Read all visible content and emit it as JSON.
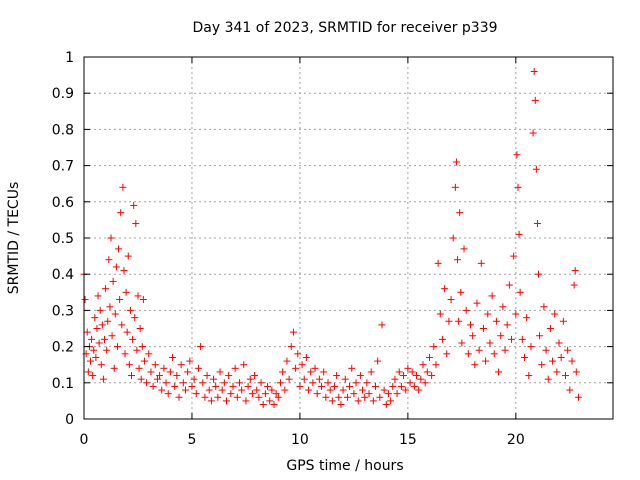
{
  "chart_data": {
    "type": "scatter",
    "title": "Day 341 of 2023, SRMTID for receiver p339",
    "xlabel": "GPS time / hours",
    "ylabel": "SRMTID / TECUs",
    "xlim": [
      0,
      24.5
    ],
    "ylim": [
      0,
      1
    ],
    "xticks": [
      0,
      5,
      10,
      15,
      20
    ],
    "yticks": [
      0,
      0.1,
      0.2,
      0.3,
      0.4,
      0.5,
      0.6,
      0.7,
      0.8,
      0.9,
      1
    ],
    "grid": true,
    "marker": "plus",
    "color": "#ff0000",
    "series": [
      {
        "name": "p339",
        "points": [
          [
            0.0,
            0.4
          ],
          [
            0.05,
            0.33
          ],
          [
            0.1,
            0.18
          ],
          [
            0.15,
            0.24
          ],
          [
            0.2,
            0.13
          ],
          [
            0.25,
            0.2
          ],
          [
            0.3,
            0.16
          ],
          [
            0.35,
            0.22
          ],
          [
            0.4,
            0.12
          ],
          [
            0.45,
            0.19
          ],
          [
            0.5,
            0.28
          ],
          [
            0.55,
            0.17
          ],
          [
            0.6,
            0.25
          ],
          [
            0.65,
            0.34
          ],
          [
            0.7,
            0.21
          ],
          [
            0.75,
            0.3
          ],
          [
            0.8,
            0.15
          ],
          [
            0.85,
            0.26
          ],
          [
            0.9,
            0.11
          ],
          [
            0.95,
            0.22
          ],
          [
            1.0,
            0.36
          ],
          [
            1.05,
            0.19
          ],
          [
            1.1,
            0.27
          ],
          [
            1.15,
            0.44
          ],
          [
            1.2,
            0.31
          ],
          [
            1.25,
            0.5
          ],
          [
            1.3,
            0.23
          ],
          [
            1.35,
            0.38
          ],
          [
            1.4,
            0.14
          ],
          [
            1.45,
            0.29
          ],
          [
            1.5,
            0.42
          ],
          [
            1.55,
            0.2
          ],
          [
            1.6,
            0.47
          ],
          [
            1.65,
            0.33
          ],
          [
            1.7,
            0.57
          ],
          [
            1.75,
            0.26
          ],
          [
            1.8,
            0.64
          ],
          [
            1.85,
            0.41
          ],
          [
            1.9,
            0.18
          ],
          [
            1.95,
            0.35
          ],
          [
            2.0,
            0.24
          ],
          [
            2.05,
            0.45
          ],
          [
            2.1,
            0.15
          ],
          [
            2.15,
            0.3
          ],
          [
            2.2,
            0.12
          ],
          [
            2.25,
            0.22
          ],
          [
            2.3,
            0.59
          ],
          [
            2.35,
            0.28
          ],
          [
            2.4,
            0.54
          ],
          [
            2.45,
            0.19
          ],
          [
            2.5,
            0.34
          ],
          [
            2.55,
            0.14
          ],
          [
            2.6,
            0.25
          ],
          [
            2.65,
            0.11
          ],
          [
            2.7,
            0.2
          ],
          [
            2.75,
            0.33
          ],
          [
            2.8,
            0.16
          ],
          [
            2.9,
            0.1
          ],
          [
            3.0,
            0.18
          ],
          [
            3.1,
            0.13
          ],
          [
            3.2,
            0.09
          ],
          [
            3.3,
            0.15
          ],
          [
            3.4,
            0.11
          ],
          [
            3.5,
            0.12
          ],
          [
            3.6,
            0.08
          ],
          [
            3.7,
            0.14
          ],
          [
            3.8,
            0.1
          ],
          [
            3.9,
            0.07
          ],
          [
            4.0,
            0.13
          ],
          [
            4.1,
            0.17
          ],
          [
            4.2,
            0.09
          ],
          [
            4.3,
            0.12
          ],
          [
            4.4,
            0.06
          ],
          [
            4.5,
            0.15
          ],
          [
            4.6,
            0.1
          ],
          [
            4.7,
            0.08
          ],
          [
            4.8,
            0.13
          ],
          [
            4.9,
            0.16
          ],
          [
            5.0,
            0.09
          ],
          [
            5.1,
            0.11
          ],
          [
            5.2,
            0.07
          ],
          [
            5.3,
            0.14
          ],
          [
            5.4,
            0.2
          ],
          [
            5.5,
            0.1
          ],
          [
            5.6,
            0.06
          ],
          [
            5.7,
            0.12
          ],
          [
            5.8,
            0.08
          ],
          [
            5.9,
            0.05
          ],
          [
            6.0,
            0.11
          ],
          [
            6.1,
            0.09
          ],
          [
            6.2,
            0.06
          ],
          [
            6.3,
            0.13
          ],
          [
            6.4,
            0.08
          ],
          [
            6.5,
            0.1
          ],
          [
            6.6,
            0.05
          ],
          [
            6.7,
            0.12
          ],
          [
            6.8,
            0.07
          ],
          [
            6.9,
            0.09
          ],
          [
            7.0,
            0.14
          ],
          [
            7.1,
            0.06
          ],
          [
            7.2,
            0.1
          ],
          [
            7.3,
            0.08
          ],
          [
            7.4,
            0.15
          ],
          [
            7.5,
            0.05
          ],
          [
            7.6,
            0.09
          ],
          [
            7.7,
            0.11
          ],
          [
            7.8,
            0.07
          ],
          [
            7.9,
            0.12
          ],
          [
            8.0,
            0.08
          ],
          [
            8.1,
            0.06
          ],
          [
            8.2,
            0.1
          ],
          [
            8.3,
            0.04
          ],
          [
            8.4,
            0.07
          ],
          [
            8.5,
            0.09
          ],
          [
            8.6,
            0.05
          ],
          [
            8.7,
            0.08
          ],
          [
            8.8,
            0.04
          ],
          [
            8.9,
            0.07
          ],
          [
            9.0,
            0.06
          ],
          [
            9.1,
            0.1
          ],
          [
            9.2,
            0.13
          ],
          [
            9.3,
            0.08
          ],
          [
            9.4,
            0.16
          ],
          [
            9.5,
            0.11
          ],
          [
            9.6,
            0.2
          ],
          [
            9.7,
            0.24
          ],
          [
            9.8,
            0.14
          ],
          [
            9.9,
            0.18
          ],
          [
            10.0,
            0.09
          ],
          [
            10.1,
            0.15
          ],
          [
            10.2,
            0.11
          ],
          [
            10.3,
            0.17
          ],
          [
            10.4,
            0.08
          ],
          [
            10.5,
            0.13
          ],
          [
            10.6,
            0.1
          ],
          [
            10.7,
            0.14
          ],
          [
            10.8,
            0.07
          ],
          [
            10.9,
            0.11
          ],
          [
            11.0,
            0.09
          ],
          [
            11.1,
            0.13
          ],
          [
            11.2,
            0.06
          ],
          [
            11.3,
            0.1
          ],
          [
            11.4,
            0.08
          ],
          [
            11.5,
            0.05
          ],
          [
            11.6,
            0.09
          ],
          [
            11.7,
            0.12
          ],
          [
            11.8,
            0.06
          ],
          [
            11.9,
            0.04
          ],
          [
            12.0,
            0.08
          ],
          [
            12.1,
            0.11
          ],
          [
            12.2,
            0.06
          ],
          [
            12.3,
            0.09
          ],
          [
            12.4,
            0.14
          ],
          [
            12.5,
            0.07
          ],
          [
            12.6,
            0.1
          ],
          [
            12.7,
            0.05
          ],
          [
            12.8,
            0.12
          ],
          [
            12.9,
            0.08
          ],
          [
            13.0,
            0.06
          ],
          [
            13.1,
            0.1
          ],
          [
            13.2,
            0.07
          ],
          [
            13.3,
            0.13
          ],
          [
            13.4,
            0.05
          ],
          [
            13.5,
            0.09
          ],
          [
            13.6,
            0.16
          ],
          [
            13.7,
            0.06
          ],
          [
            13.8,
            0.26
          ],
          [
            13.9,
            0.08
          ],
          [
            14.0,
            0.04
          ],
          [
            14.1,
            0.07
          ],
          [
            14.2,
            0.05
          ],
          [
            14.3,
            0.09
          ],
          [
            14.4,
            0.11
          ],
          [
            14.5,
            0.07
          ],
          [
            14.6,
            0.13
          ],
          [
            14.7,
            0.09
          ],
          [
            14.8,
            0.12
          ],
          [
            14.9,
            0.08
          ],
          [
            15.0,
            0.14
          ],
          [
            15.1,
            0.1
          ],
          [
            15.2,
            0.13
          ],
          [
            15.3,
            0.09
          ],
          [
            15.4,
            0.12
          ],
          [
            15.5,
            0.08
          ],
          [
            15.6,
            0.11
          ],
          [
            15.7,
            0.15
          ],
          [
            15.8,
            0.1
          ],
          [
            15.9,
            0.13
          ],
          [
            16.0,
            0.17
          ],
          [
            16.1,
            0.12
          ],
          [
            16.2,
            0.2
          ],
          [
            16.3,
            0.15
          ],
          [
            16.4,
            0.43
          ],
          [
            16.5,
            0.29
          ],
          [
            16.6,
            0.22
          ],
          [
            16.7,
            0.36
          ],
          [
            16.8,
            0.18
          ],
          [
            16.9,
            0.27
          ],
          [
            17.0,
            0.33
          ],
          [
            17.1,
            0.5
          ],
          [
            17.2,
            0.64
          ],
          [
            17.25,
            0.71
          ],
          [
            17.3,
            0.44
          ],
          [
            17.35,
            0.27
          ],
          [
            17.4,
            0.57
          ],
          [
            17.45,
            0.35
          ],
          [
            17.5,
            0.21
          ],
          [
            17.6,
            0.47
          ],
          [
            17.7,
            0.3
          ],
          [
            17.8,
            0.18
          ],
          [
            17.9,
            0.26
          ],
          [
            18.0,
            0.23
          ],
          [
            18.1,
            0.15
          ],
          [
            18.2,
            0.32
          ],
          [
            18.3,
            0.19
          ],
          [
            18.4,
            0.43
          ],
          [
            18.5,
            0.25
          ],
          [
            18.6,
            0.16
          ],
          [
            18.7,
            0.29
          ],
          [
            18.8,
            0.21
          ],
          [
            18.9,
            0.34
          ],
          [
            19.0,
            0.18
          ],
          [
            19.1,
            0.27
          ],
          [
            19.2,
            0.13
          ],
          [
            19.3,
            0.23
          ],
          [
            19.4,
            0.31
          ],
          [
            19.5,
            0.19
          ],
          [
            19.6,
            0.26
          ],
          [
            19.7,
            0.37
          ],
          [
            19.8,
            0.22
          ],
          [
            19.9,
            0.45
          ],
          [
            20.0,
            0.29
          ],
          [
            20.05,
            0.73
          ],
          [
            20.1,
            0.64
          ],
          [
            20.15,
            0.51
          ],
          [
            20.2,
            0.35
          ],
          [
            20.3,
            0.22
          ],
          [
            20.4,
            0.17
          ],
          [
            20.5,
            0.28
          ],
          [
            20.6,
            0.12
          ],
          [
            20.7,
            0.2
          ],
          [
            20.8,
            0.79
          ],
          [
            20.85,
            0.96
          ],
          [
            20.9,
            0.88
          ],
          [
            20.95,
            0.69
          ],
          [
            21.0,
            0.54
          ],
          [
            21.05,
            0.4
          ],
          [
            21.1,
            0.23
          ],
          [
            21.2,
            0.15
          ],
          [
            21.3,
            0.31
          ],
          [
            21.4,
            0.19
          ],
          [
            21.5,
            0.11
          ],
          [
            21.6,
            0.25
          ],
          [
            21.7,
            0.16
          ],
          [
            21.8,
            0.29
          ],
          [
            21.9,
            0.13
          ],
          [
            22.0,
            0.21
          ],
          [
            22.1,
            0.17
          ],
          [
            22.2,
            0.27
          ],
          [
            22.3,
            0.12
          ],
          [
            22.4,
            0.19
          ],
          [
            22.5,
            0.08
          ],
          [
            22.6,
            0.16
          ],
          [
            22.7,
            0.37
          ],
          [
            22.75,
            0.41
          ],
          [
            22.8,
            0.13
          ],
          [
            22.9,
            0.06
          ]
        ]
      }
    ]
  }
}
